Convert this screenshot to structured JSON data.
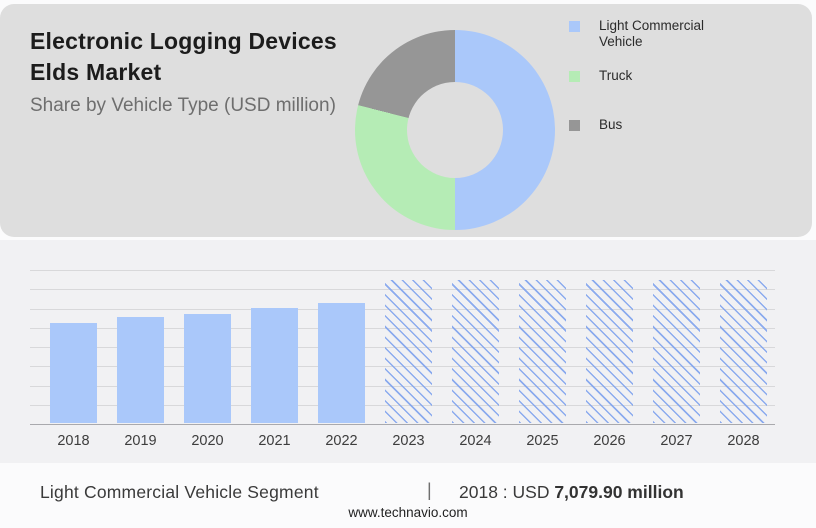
{
  "header": {
    "title": "Electronic Logging Devices Elds Market",
    "subtitle": "Share by Vehicle Type (USD million)"
  },
  "caption": {
    "segment": "Light Commercial Vehicle Segment",
    "separator": "|",
    "value_prefix": "2018 : USD ",
    "value_bold": "7,079.90 million"
  },
  "footer": {
    "url": "www.technavio.com"
  },
  "colors": {
    "panel_gray": "#dedede",
    "bar_blue": "#aac8fa",
    "truck_green": "#b5ecb5",
    "bus_gray": "#969696",
    "card_bg": "#f1f1f3"
  },
  "chart_data": [
    {
      "type": "pie",
      "donut": true,
      "title": "Share by Vehicle Type (USD million)",
      "labels": [
        "Light Commercial Vehicle",
        "Truck",
        "Bus"
      ],
      "values_pct": [
        50,
        29,
        21
      ],
      "colors": [
        "#aac8fa",
        "#b5ecb5",
        "#969696"
      ],
      "legend_position": "right",
      "start_angle_deg": 0,
      "direction": "clockwise"
    },
    {
      "type": "bar",
      "title": "",
      "xlabel": "",
      "ylabel": "",
      "unit": "USD million",
      "categories": [
        "2018",
        "2019",
        "2020",
        "2021",
        "2022",
        "2023",
        "2024",
        "2025",
        "2026",
        "2027",
        "2028"
      ],
      "values": [
        7079.9,
        7470,
        7690,
        8120,
        8470,
        null,
        null,
        null,
        null,
        null,
        null
      ],
      "values_are_estimated_except_2018": true,
      "anchor_label": "2018 : USD 7,079.90 million",
      "forecast_categories_hatched": [
        "2023",
        "2024",
        "2025",
        "2026",
        "2027",
        "2028"
      ],
      "forecast_placeholder_value": 10150,
      "bar_color": "#aac8fa",
      "hatch_style": "diagonal-blue-stripes",
      "ylim": [
        0,
        10900
      ],
      "grid": true,
      "gridline_count": 9,
      "y_axis_labels": false
    }
  ]
}
